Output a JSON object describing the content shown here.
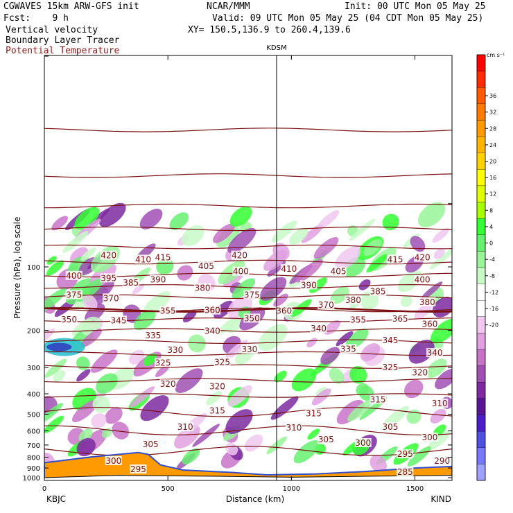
{
  "header": {
    "model": "CGWAVES 15km ARW-GFS init",
    "fcst": "Fcst:    9 h",
    "center": "NCAR/MMM",
    "init": "Init: 00 UTC Mon 05 May 25",
    "valid": "Valid: 09 UTC Mon 05 May 25 (04 CDT Mon 05 May 25)",
    "xy": "XY= 150.5,136.9 to 260.4,139.6",
    "fields": [
      "Vertical velocity",
      "Boundary Layer Tracer",
      "Potential Temperature"
    ],
    "colors": {
      "text": "#000000",
      "theta_field_label": "#8b1a1a"
    }
  },
  "chart_data": {
    "type": "heatmap",
    "xlabel": "Distance (km)",
    "ylabel": "Pressure (hPa), log scale",
    "xlim": [
      0,
      1650
    ],
    "x_ticks": [
      0,
      500,
      1000,
      1500
    ],
    "y_ticks": [
      100,
      200,
      300,
      400,
      500,
      600,
      700,
      800,
      900,
      1000
    ],
    "y_scale": "log",
    "x_endpoints": [
      "KBJC",
      "KIND"
    ],
    "station_marker": {
      "label": "KDSM",
      "x": 940
    },
    "colorbar": {
      "units": "cm s⁻¹",
      "tick_labels": [
        "36",
        "32",
        "28",
        "24",
        "20",
        "16",
        "12",
        "8",
        "4",
        "0",
        "-4",
        "-8",
        "-12",
        "-16",
        "-20"
      ],
      "colors": [
        "#ff0000",
        "#ff2a00",
        "#ff5a00",
        "#ff7a00",
        "#ff9a00",
        "#ffb400",
        "#ffd200",
        "#ffff00",
        "#e0ff00",
        "#a8ff00",
        "#33ff33",
        "#66f070",
        "#99f599",
        "#c8fac8",
        "#ffffff",
        "#ffffff",
        "#f0c8f0",
        "#e0a0e0",
        "#c873c8",
        "#a050b4",
        "#7d2aa0",
        "#5a1496",
        "#4b1ec8",
        "#5050e0",
        "#7878ff",
        "#a0a0ff"
      ]
    },
    "isentropes_K": [
      285,
      290,
      295,
      300,
      305,
      310,
      315,
      320,
      325,
      330,
      335,
      340,
      345,
      350,
      355,
      360,
      365,
      370,
      375,
      380,
      385,
      390,
      395,
      400,
      405,
      410,
      415,
      420
    ],
    "isentrope_labels": [
      {
        "t": "420",
        "x": 260,
        "p": 89
      },
      {
        "t": "410",
        "x": 400,
        "p": 93
      },
      {
        "t": "415",
        "x": 480,
        "p": 91
      },
      {
        "t": "420",
        "x": 790,
        "p": 89
      },
      {
        "t": "415",
        "x": 1420,
        "p": 93
      },
      {
        "t": "420",
        "x": 1530,
        "p": 91
      },
      {
        "t": "400",
        "x": 120,
        "p": 111
      },
      {
        "t": "395",
        "x": 260,
        "p": 114
      },
      {
        "t": "385",
        "x": 350,
        "p": 120
      },
      {
        "t": "390",
        "x": 460,
        "p": 116
      },
      {
        "t": "405",
        "x": 655,
        "p": 100
      },
      {
        "t": "400",
        "x": 795,
        "p": 106
      },
      {
        "t": "410",
        "x": 990,
        "p": 103
      },
      {
        "t": "405",
        "x": 1190,
        "p": 106
      },
      {
        "t": "400",
        "x": 1530,
        "p": 116
      },
      {
        "t": "380",
        "x": 640,
        "p": 127
      },
      {
        "t": "390",
        "x": 1070,
        "p": 123
      },
      {
        "t": "385",
        "x": 1350,
        "p": 132
      },
      {
        "t": "375",
        "x": 120,
        "p": 137
      },
      {
        "t": "370",
        "x": 270,
        "p": 142
      },
      {
        "t": "375",
        "x": 840,
        "p": 137
      },
      {
        "t": "380",
        "x": 1250,
        "p": 145
      },
      {
        "t": "380",
        "x": 1550,
        "p": 148
      },
      {
        "t": "355",
        "x": 500,
        "p": 163
      },
      {
        "t": "360",
        "x": 680,
        "p": 162
      },
      {
        "t": "350",
        "x": 840,
        "p": 177
      },
      {
        "t": "360",
        "x": 970,
        "p": 163
      },
      {
        "t": "370",
        "x": 1140,
        "p": 153
      },
      {
        "t": "365",
        "x": 1440,
        "p": 178
      },
      {
        "t": "350",
        "x": 100,
        "p": 179
      },
      {
        "t": "345",
        "x": 300,
        "p": 181
      },
      {
        "t": "355",
        "x": 1270,
        "p": 180
      },
      {
        "t": "360",
        "x": 1560,
        "p": 188
      },
      {
        "t": "340",
        "x": 680,
        "p": 203
      },
      {
        "t": "340",
        "x": 1110,
        "p": 198
      },
      {
        "t": "335",
        "x": 440,
        "p": 213
      },
      {
        "t": "345",
        "x": 1400,
        "p": 225
      },
      {
        "t": "330",
        "x": 530,
        "p": 250
      },
      {
        "t": "330",
        "x": 830,
        "p": 248
      },
      {
        "t": "335",
        "x": 1230,
        "p": 247
      },
      {
        "t": "340",
        "x": 1580,
        "p": 258
      },
      {
        "t": "325",
        "x": 480,
        "p": 288
      },
      {
        "t": "325",
        "x": 720,
        "p": 285
      },
      {
        "t": "325",
        "x": 1400,
        "p": 302
      },
      {
        "t": "320",
        "x": 1520,
        "p": 320
      },
      {
        "t": "320",
        "x": 500,
        "p": 363
      },
      {
        "t": "320",
        "x": 700,
        "p": 372
      },
      {
        "t": "315",
        "x": 1350,
        "p": 430
      },
      {
        "t": "310",
        "x": 1600,
        "p": 448
      },
      {
        "t": "315",
        "x": 700,
        "p": 485
      },
      {
        "t": "315",
        "x": 1090,
        "p": 500
      },
      {
        "t": "305",
        "x": 1400,
        "p": 580
      },
      {
        "t": "310",
        "x": 570,
        "p": 580
      },
      {
        "t": "310",
        "x": 1010,
        "p": 585
      },
      {
        "t": "300",
        "x": 1560,
        "p": 650
      },
      {
        "t": "305",
        "x": 430,
        "p": 700
      },
      {
        "t": "305",
        "x": 1140,
        "p": 665
      },
      {
        "t": "300",
        "x": 1290,
        "p": 690
      },
      {
        "t": "295",
        "x": 1460,
        "p": 780
      },
      {
        "t": "300",
        "x": 280,
        "p": 840
      },
      {
        "t": "290",
        "x": 1610,
        "p": 840
      },
      {
        "t": "295",
        "x": 380,
        "p": 920
      },
      {
        "t": "285",
        "x": 1460,
        "p": 950
      }
    ]
  }
}
